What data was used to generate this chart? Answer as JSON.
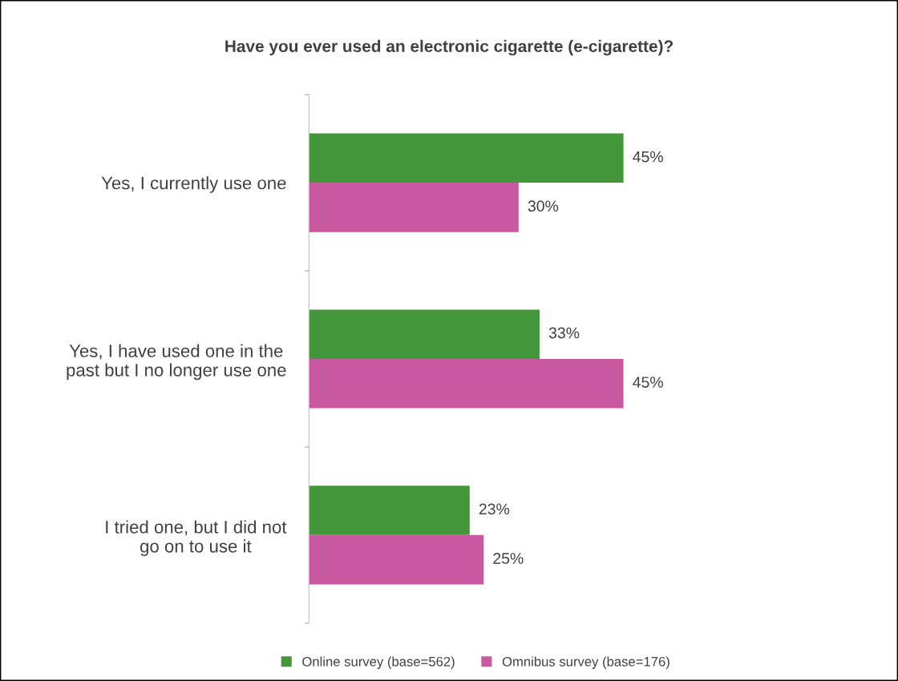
{
  "chart_data": {
    "type": "bar",
    "orientation": "horizontal",
    "title": "Have you ever used an electronic cigarette (e-cigarette)?",
    "categories": [
      "Yes, I currently use one",
      "Yes, I have used one in the past but I no longer use one",
      "I tried one, but I did not go on to use it"
    ],
    "series": [
      {
        "name": "Online survey (base=562)",
        "color": "#43963a",
        "values": [
          45,
          33,
          23
        ],
        "value_labels": [
          "45%",
          "33%",
          "23%"
        ]
      },
      {
        "name": "Omnibus survey (base=176)",
        "color": "#c859a0",
        "values": [
          30,
          45,
          25
        ],
        "value_labels": [
          "30%",
          "45%",
          "25%"
        ]
      }
    ],
    "legend": "bottom",
    "grid": false
  }
}
